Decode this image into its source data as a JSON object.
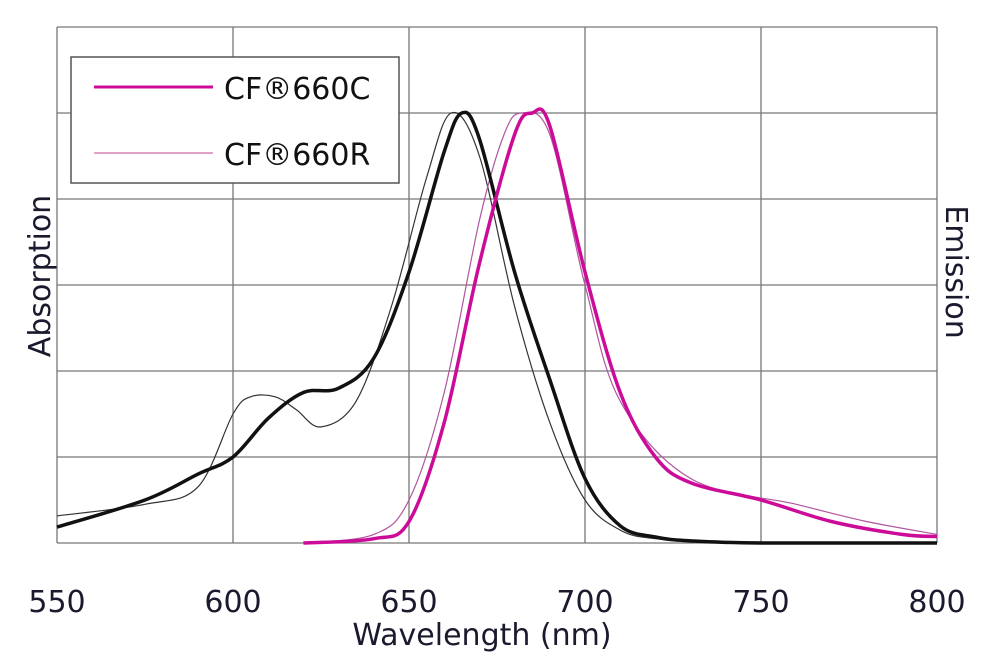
{
  "chart_data": {
    "type": "line",
    "title": "",
    "xlabel": "Wavelength (nm)",
    "ylabel_left": "Absorption",
    "ylabel_right": "Emission",
    "xlim": [
      550,
      800
    ],
    "ylim": [
      0,
      1.2
    ],
    "xticks": [
      "550",
      "600",
      "650",
      "700",
      "750",
      "800"
    ],
    "grid": true,
    "legend_position": "top-left",
    "legend": [
      {
        "label": "CF®660C",
        "style": "thick"
      },
      {
        "label": "CF®660R",
        "style": "thin"
      }
    ],
    "colors": {
      "absorption": "#111111",
      "emission": "#cc0c99",
      "grid": "#777777"
    },
    "series": [
      {
        "name": "CF®660C absorption",
        "color": "#111111",
        "width": 3.5,
        "x": [
          550,
          575,
          590,
          600,
          610,
          620,
          630,
          640,
          650,
          660,
          665,
          670,
          680,
          690,
          700,
          710,
          720,
          730,
          750,
          800
        ],
        "y": [
          0.037,
          0.1,
          0.16,
          0.2,
          0.29,
          0.35,
          0.36,
          0.43,
          0.63,
          0.91,
          1.0,
          0.94,
          0.63,
          0.38,
          0.15,
          0.04,
          0.014,
          0.005,
          0,
          0
        ]
      },
      {
        "name": "CF®660R absorption",
        "color": "#333333",
        "width": 1.2,
        "x": [
          550,
          575,
          590,
          600,
          605,
          612,
          618,
          625,
          635,
          645,
          655,
          662,
          670,
          680,
          690,
          700,
          710,
          720,
          740
        ],
        "y": [
          0.063,
          0.09,
          0.13,
          0.3,
          0.34,
          0.34,
          0.31,
          0.27,
          0.33,
          0.55,
          0.85,
          1.0,
          0.9,
          0.55,
          0.28,
          0.1,
          0.03,
          0.01,
          0
        ]
      },
      {
        "name": "CF®660C emission",
        "color": "#cc0c99",
        "width": 3.5,
        "x": [
          620,
          640,
          650,
          660,
          670,
          680,
          685,
          690,
          700,
          710,
          720,
          730,
          750,
          770,
          790,
          800
        ],
        "y": [
          0,
          0.01,
          0.05,
          0.28,
          0.65,
          0.95,
          1.0,
          0.97,
          0.63,
          0.35,
          0.2,
          0.14,
          0.1,
          0.05,
          0.02,
          0.015
        ]
      },
      {
        "name": "CF®660R emission",
        "color": "#b0559e",
        "width": 1.2,
        "x": [
          620,
          640,
          650,
          660,
          670,
          677,
          682,
          690,
          700,
          710,
          730,
          760,
          780,
          800
        ],
        "y": [
          0,
          0.02,
          0.1,
          0.35,
          0.75,
          0.95,
          1.0,
          0.95,
          0.6,
          0.33,
          0.15,
          0.09,
          0.05,
          0.02
        ]
      }
    ]
  }
}
